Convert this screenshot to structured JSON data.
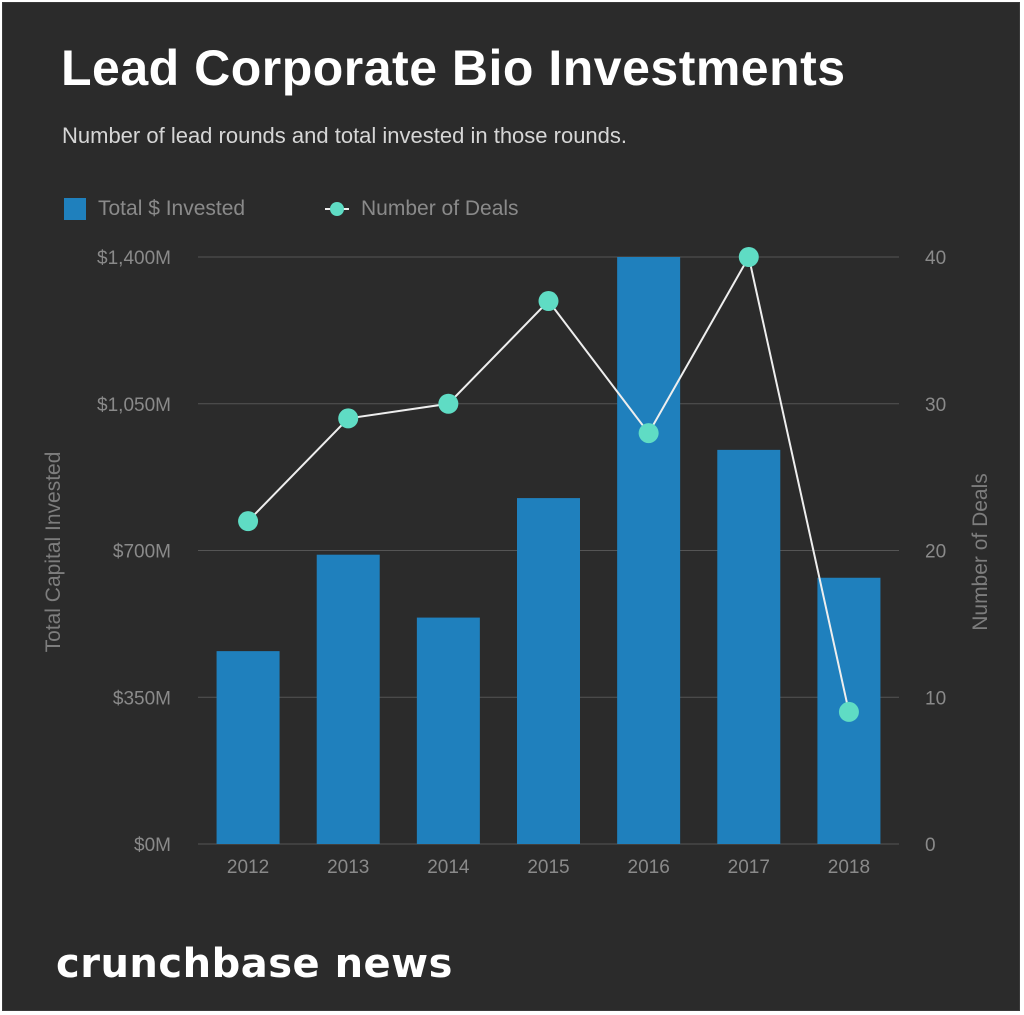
{
  "page": {
    "title": "Lead Corporate Bio Investments",
    "subtitle": "Number of lead rounds and total invested in those rounds.",
    "brand": "crunchbase news"
  },
  "colors": {
    "background": "#2b2b2b",
    "bar": "#1f80bd",
    "line": "#eeeeee",
    "marker": "#5fdcc4",
    "grid": "#555555",
    "tick_text": "#8a8a8a"
  },
  "chart_data": {
    "type": "bar",
    "categories": [
      "2012",
      "2013",
      "2014",
      "2015",
      "2016",
      "2017",
      "2018"
    ],
    "series": [
      {
        "name": "Total $ Invested",
        "type": "bar",
        "axis": "left",
        "values": [
          460,
          690,
          540,
          825,
          1400,
          940,
          635
        ]
      },
      {
        "name": "Number of Deals",
        "type": "line",
        "axis": "right",
        "values": [
          22,
          29,
          30,
          37,
          28,
          40,
          9
        ]
      }
    ],
    "ylabel": "Total Capital Invested",
    "ylim": [
      0,
      1400
    ],
    "yticks": [
      0,
      350,
      700,
      1050,
      1400
    ],
    "ytick_labels": [
      "$0M",
      "$350M",
      "$700M",
      "$1,050M",
      "$1,400M"
    ],
    "y2label": "Number of Deals",
    "y2lim": [
      0,
      40
    ],
    "y2ticks": [
      0,
      10,
      20,
      30,
      40
    ],
    "y2tick_labels": [
      "0",
      "10",
      "20",
      "30",
      "40"
    ],
    "grid": true,
    "legend": "top-left"
  }
}
